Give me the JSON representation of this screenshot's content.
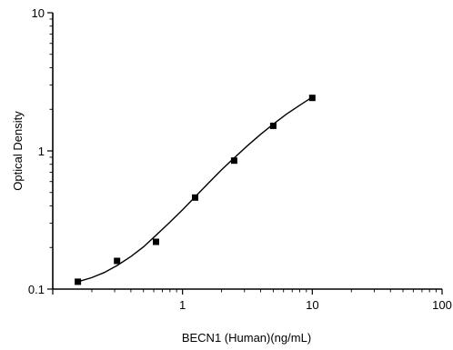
{
  "chart_data": {
    "type": "scatter",
    "xlabel": "BECN1 (Human)(ng/mL)",
    "ylabel": "Optical Density",
    "x_scale": "log",
    "y_scale": "log",
    "xlim": [
      0.1,
      100
    ],
    "ylim": [
      0.1,
      10
    ],
    "x_tick_labels": [
      "1",
      "10",
      "100"
    ],
    "y_tick_labels": [
      "0.1",
      "1",
      "10"
    ],
    "grid": false,
    "series": [
      {
        "x": [
          0.156,
          0.313,
          0.625,
          1.25,
          2.5,
          5,
          10
        ],
        "y": [
          0.113,
          0.16,
          0.22,
          0.46,
          0.85,
          1.52,
          2.42
        ]
      }
    ],
    "fit_curve": {
      "x": [
        0.156,
        0.2,
        0.25,
        0.313,
        0.4,
        0.5,
        0.625,
        0.8,
        1.0,
        1.25,
        1.6,
        2.0,
        2.5,
        3.2,
        4.0,
        5.0,
        6.3,
        8.0,
        10
      ],
      "y": [
        0.113,
        0.121,
        0.132,
        0.148,
        0.172,
        0.202,
        0.245,
        0.305,
        0.375,
        0.465,
        0.59,
        0.73,
        0.89,
        1.1,
        1.32,
        1.56,
        1.84,
        2.14,
        2.45
      ]
    }
  }
}
